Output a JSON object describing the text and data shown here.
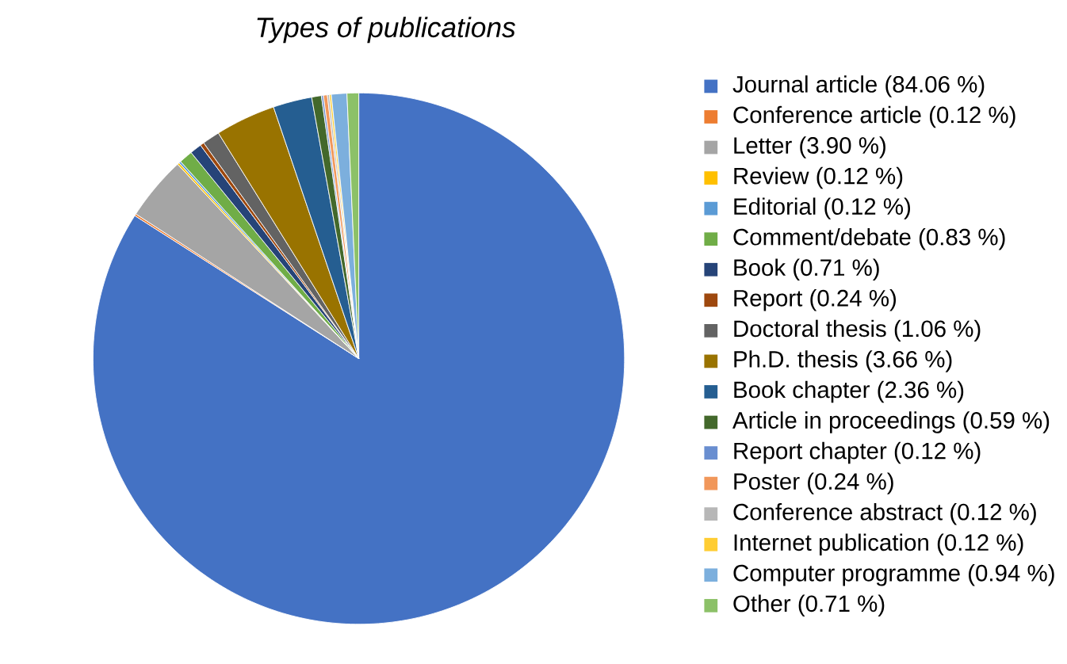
{
  "chart_data": {
    "type": "pie",
    "title": "Types of publications",
    "categories": [
      "Journal article (84.06 %)",
      "Conference article (0.12 %)",
      "Letter (3.90 %)",
      "Review (0.12 %)",
      "Editorial (0.12 %)",
      "Comment/debate (0.83 %)",
      "Book (0.71 %)",
      "Report (0.24 %)",
      "Doctoral thesis (1.06 %)",
      "Ph.D. thesis (3.66 %)",
      "Book chapter (2.36 %)",
      "Article in proceedings (0.59 %)",
      "Report chapter (0.12 %)",
      "Poster (0.24 %)",
      "Conference abstract (0.12 %)",
      "Internet publication (0.12 %)",
      "Computer programme (0.94 %)",
      "Other (0.71 %)"
    ],
    "values": [
      84.06,
      0.12,
      3.9,
      0.12,
      0.12,
      0.83,
      0.71,
      0.24,
      1.06,
      3.66,
      2.36,
      0.59,
      0.12,
      0.24,
      0.12,
      0.12,
      0.94,
      0.71
    ],
    "colors": [
      "#4472c4",
      "#ed7d31",
      "#a5a5a5",
      "#ffc000",
      "#5b9bd5",
      "#70ad47",
      "#264478",
      "#9e480e",
      "#636363",
      "#997300",
      "#255e91",
      "#43682b",
      "#698ed0",
      "#f1975a",
      "#b7b7b7",
      "#ffcd33",
      "#7cafdd",
      "#8cc168"
    ],
    "legend": "right"
  }
}
